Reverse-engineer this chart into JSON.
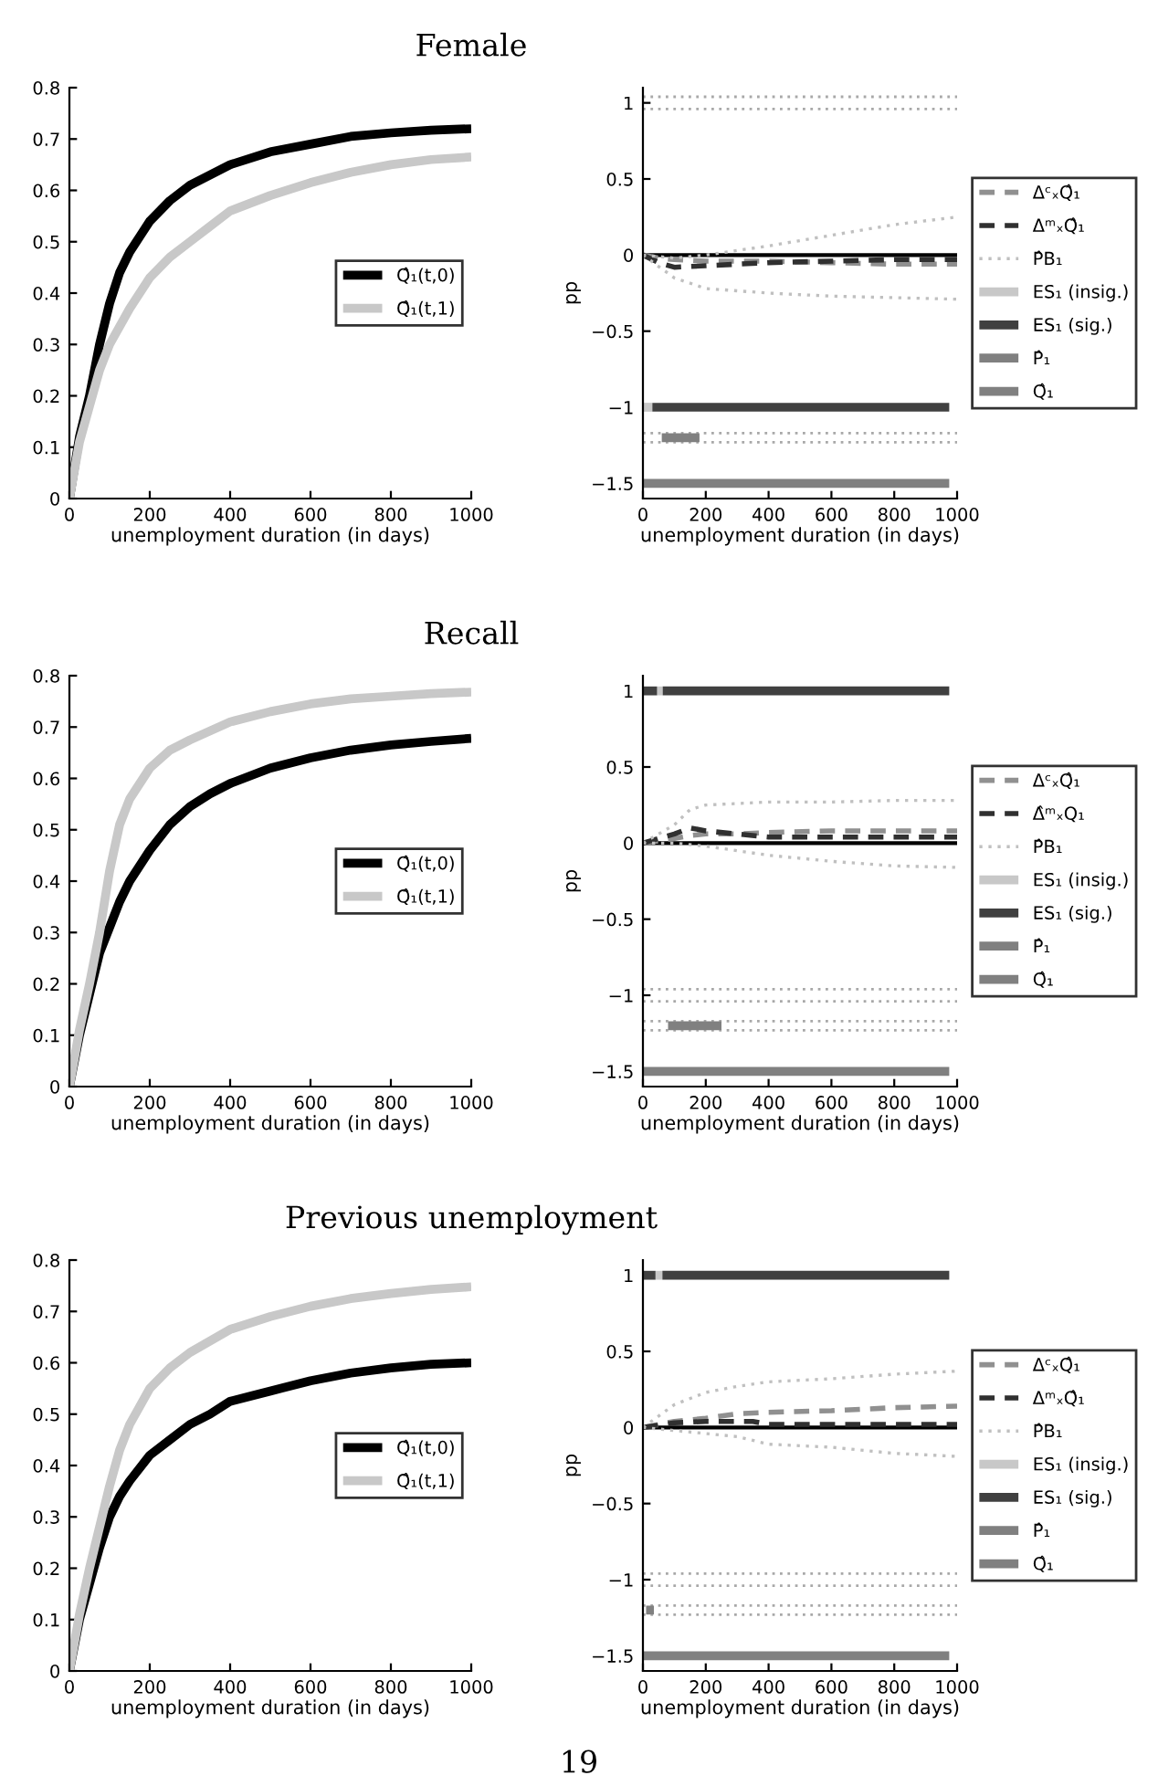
{
  "chart_data": [
    {
      "type": "line",
      "title": "Female",
      "xlabel": "unemployment duration (in days)",
      "xlim": [
        0,
        1000
      ],
      "xticks": [
        0,
        200,
        400,
        600,
        800,
        1000
      ],
      "ylim": [
        0,
        0.8
      ],
      "yticks": [
        0,
        0.1,
        0.2,
        0.3,
        0.4,
        0.5,
        0.6,
        0.7,
        0.8
      ],
      "legend": "center right",
      "series": [
        {
          "name": "Q̂₁(t,0)",
          "color": "#000000",
          "line_style": "solid",
          "x": [
            0,
            25,
            50,
            75,
            100,
            125,
            150,
            200,
            250,
            300,
            400,
            500,
            600,
            700,
            800,
            900,
            1000
          ],
          "values": [
            0,
            0.12,
            0.2,
            0.3,
            0.38,
            0.44,
            0.48,
            0.54,
            0.58,
            0.61,
            0.65,
            0.675,
            0.69,
            0.705,
            0.712,
            0.717,
            0.72
          ]
        },
        {
          "name": "Q̂₁(t,1)",
          "color": "#c8c8c8",
          "line_style": "solid",
          "x": [
            0,
            25,
            50,
            75,
            100,
            150,
            200,
            250,
            300,
            350,
            400,
            500,
            600,
            700,
            800,
            900,
            1000
          ],
          "values": [
            0,
            0.11,
            0.18,
            0.25,
            0.3,
            0.37,
            0.43,
            0.47,
            0.5,
            0.53,
            0.56,
            0.59,
            0.615,
            0.635,
            0.65,
            0.66,
            0.665
          ]
        }
      ]
    },
    {
      "type": "line",
      "xlabel": "unemployment duration (in days)",
      "ylabel": "pp",
      "xlim": [
        0,
        1000
      ],
      "xticks": [
        0,
        200,
        400,
        600,
        800,
        1000
      ],
      "ylim": [
        -1.6,
        1.1
      ],
      "yticks": [
        {
          "value": -1.5,
          "label": "−1.5"
        },
        {
          "value": -1,
          "label": "−1"
        },
        {
          "value": -0.5,
          "label": "−0.5"
        },
        0,
        0.5,
        1
      ],
      "legend": "right",
      "ref_lines": [
        {
          "axis": "y",
          "value": 0,
          "color": "#000000",
          "line_style": "solid"
        },
        {
          "axis": "y",
          "value": 1.04,
          "color": "#a8a8a8",
          "line_style": "dotted"
        },
        {
          "axis": "y",
          "value": 0.96,
          "color": "#a8a8a8",
          "line_style": "dotted"
        },
        {
          "axis": "y",
          "value": -1.17,
          "color": "#a8a8a8",
          "line_style": "dotted"
        },
        {
          "axis": "y",
          "value": -1.23,
          "color": "#a8a8a8",
          "line_style": "dotted"
        }
      ],
      "series": [
        {
          "name": "ΔᶜₓQ̂₁",
          "color": "#909090",
          "line_style": "dashed",
          "x": [
            0,
            50,
            100,
            200,
            400,
            600,
            800,
            1000
          ],
          "values": [
            0,
            -0.02,
            -0.03,
            -0.04,
            -0.04,
            -0.05,
            -0.06,
            -0.06
          ]
        },
        {
          "name": "ΔᵐₓQ̂₁",
          "color": "#303030",
          "line_style": "dashed",
          "x": [
            0,
            50,
            100,
            200,
            400,
            600,
            800,
            1000
          ],
          "values": [
            0,
            -0.05,
            -0.08,
            -0.07,
            -0.05,
            -0.04,
            -0.03,
            -0.03
          ]
        },
        {
          "name": "P̂B₁",
          "color": "#c0c0c0",
          "line_style": "dotted",
          "x": [
            0,
            100,
            200,
            300,
            400,
            600,
            800,
            1000
          ],
          "values": [
            0,
            -0.02,
            0,
            0.03,
            0.06,
            0.13,
            0.2,
            0.25
          ]
        },
        {
          "color": "#c0c0c0",
          "line_style": "dotted",
          "x": [
            0,
            100,
            200,
            400,
            600,
            800,
            1000
          ],
          "values": [
            0,
            -0.15,
            -0.22,
            -0.25,
            -0.27,
            -0.28,
            -0.29
          ]
        },
        {
          "name": "ES₁ (insig.)",
          "color": "#c8c8c8",
          "line_style": "solid",
          "x": [
            0,
            30
          ],
          "values": [
            -1,
            -1
          ]
        },
        {
          "name": "ES₁ (sig.)",
          "color": "#404040",
          "line_style": "solid",
          "x": [
            30,
            975
          ],
          "values": [
            -1,
            -1
          ]
        },
        {
          "name": "P̂₁",
          "color": "#808080",
          "line_style": "solid",
          "x": [
            60,
            180
          ],
          "values": [
            -1.2,
            -1.2
          ]
        },
        {
          "name": "Q̂₁",
          "color": "#808080",
          "line_style": "solid",
          "x": [
            0,
            975
          ],
          "values": [
            -1.5,
            -1.5
          ]
        }
      ]
    },
    {
      "type": "line",
      "title": "Recall",
      "xlabel": "unemployment duration (in days)",
      "xlim": [
        0,
        1000
      ],
      "xticks": [
        0,
        200,
        400,
        600,
        800,
        1000
      ],
      "ylim": [
        0,
        0.8
      ],
      "yticks": [
        0,
        0.1,
        0.2,
        0.3,
        0.4,
        0.5,
        0.6,
        0.7,
        0.8
      ],
      "legend": "center right",
      "series": [
        {
          "name": "Q̂₁(t,0)",
          "color": "#000000",
          "line_style": "solid",
          "x": [
            0,
            25,
            50,
            75,
            100,
            125,
            150,
            200,
            250,
            300,
            350,
            400,
            500,
            600,
            700,
            800,
            900,
            1000
          ],
          "values": [
            0,
            0.1,
            0.18,
            0.26,
            0.31,
            0.36,
            0.4,
            0.46,
            0.51,
            0.545,
            0.57,
            0.59,
            0.62,
            0.64,
            0.655,
            0.665,
            0.672,
            0.678
          ]
        },
        {
          "name": "Q̂₁(t,1)",
          "color": "#c8c8c8",
          "line_style": "solid",
          "x": [
            0,
            25,
            50,
            75,
            100,
            125,
            150,
            200,
            250,
            300,
            400,
            500,
            600,
            700,
            800,
            900,
            1000
          ],
          "values": [
            0,
            0.11,
            0.2,
            0.3,
            0.42,
            0.51,
            0.56,
            0.62,
            0.655,
            0.675,
            0.71,
            0.73,
            0.745,
            0.755,
            0.76,
            0.765,
            0.768
          ]
        }
      ]
    },
    {
      "type": "line",
      "xlabel": "unemployment duration (in days)",
      "ylabel": "pp",
      "xlim": [
        0,
        1000
      ],
      "xticks": [
        0,
        200,
        400,
        600,
        800,
        1000
      ],
      "ylim": [
        -1.6,
        1.1
      ],
      "yticks": [
        {
          "value": -1.5,
          "label": "−1.5"
        },
        {
          "value": -1,
          "label": "−1"
        },
        {
          "value": -0.5,
          "label": "−0.5"
        },
        0,
        0.5,
        1
      ],
      "legend": "right",
      "ref_lines": [
        {
          "axis": "y",
          "value": 0,
          "color": "#000000",
          "line_style": "solid"
        },
        {
          "axis": "y",
          "value": -0.96,
          "color": "#a8a8a8",
          "line_style": "dotted"
        },
        {
          "axis": "y",
          "value": -1.04,
          "color": "#a8a8a8",
          "line_style": "dotted"
        },
        {
          "axis": "y",
          "value": -1.17,
          "color": "#a8a8a8",
          "line_style": "dotted"
        },
        {
          "axis": "y",
          "value": -1.23,
          "color": "#a8a8a8",
          "line_style": "dotted"
        }
      ],
      "series": [
        {
          "name": "ΔᶜₓQ̂₁",
          "color": "#909090",
          "line_style": "dashed",
          "x": [
            0,
            100,
            150,
            200,
            300,
            400,
            600,
            800,
            1000
          ],
          "values": [
            0,
            0.03,
            0.05,
            0.06,
            0.06,
            0.07,
            0.08,
            0.08,
            0.08
          ]
        },
        {
          "name": "Δ̂ᵐₓQ₁",
          "color": "#303030",
          "line_style": "dashed",
          "x": [
            0,
            100,
            150,
            200,
            300,
            400,
            600,
            800,
            1000
          ],
          "values": [
            0,
            0.06,
            0.1,
            0.08,
            0.06,
            0.04,
            0.04,
            0.04,
            0.04
          ]
        },
        {
          "name": "P̂B₁",
          "color": "#c0c0c0",
          "line_style": "dotted",
          "x": [
            0,
            100,
            150,
            200,
            300,
            400,
            600,
            800,
            1000
          ],
          "values": [
            0,
            0.12,
            0.22,
            0.25,
            0.26,
            0.27,
            0.27,
            0.28,
            0.28
          ]
        },
        {
          "color": "#c0c0c0",
          "line_style": "dotted",
          "x": [
            0,
            100,
            200,
            300,
            400,
            600,
            800,
            1000
          ],
          "values": [
            0,
            0,
            -0.02,
            -0.05,
            -0.08,
            -0.12,
            -0.15,
            -0.16
          ]
        },
        {
          "name": "ES₁ (insig.)",
          "color": "#c8c8c8",
          "line_style": "solid",
          "x": [
            45,
            63
          ],
          "values": [
            1,
            1
          ]
        },
        {
          "name": "ES₁ (sig.)",
          "color": "#404040",
          "line_style": "solid",
          "x": [
            63,
            975
          ],
          "values": [
            1,
            1
          ]
        },
        {
          "color": "#404040",
          "line_style": "solid",
          "x": [
            0,
            45
          ],
          "values": [
            1,
            1
          ]
        },
        {
          "name": "P̂₁",
          "color": "#808080",
          "line_style": "solid",
          "x": [
            80,
            250
          ],
          "values": [
            -1.2,
            -1.2
          ]
        },
        {
          "name": "Q̂₁",
          "color": "#808080",
          "line_style": "solid",
          "x": [
            0,
            975
          ],
          "values": [
            -1.5,
            -1.5
          ]
        }
      ]
    },
    {
      "type": "line",
      "title": "Previous unemployment",
      "xlabel": "unemployment duration (in days)",
      "xlim": [
        0,
        1000
      ],
      "xticks": [
        0,
        200,
        400,
        600,
        800,
        1000
      ],
      "ylim": [
        0,
        0.8
      ],
      "yticks": [
        0,
        0.1,
        0.2,
        0.3,
        0.4,
        0.5,
        0.6,
        0.7,
        0.8
      ],
      "legend": "center right",
      "series": [
        {
          "name": "Q̂₁(t,0)",
          "color": "#000000",
          "line_style": "solid",
          "x": [
            0,
            25,
            50,
            75,
            100,
            125,
            150,
            200,
            250,
            300,
            350,
            400,
            500,
            600,
            700,
            800,
            900,
            1000
          ],
          "values": [
            0,
            0.1,
            0.17,
            0.24,
            0.3,
            0.34,
            0.37,
            0.42,
            0.45,
            0.48,
            0.5,
            0.525,
            0.545,
            0.565,
            0.58,
            0.59,
            0.597,
            0.6
          ]
        },
        {
          "name": "Q̂₁(t,1)",
          "color": "#c8c8c8",
          "line_style": "solid",
          "x": [
            0,
            25,
            50,
            75,
            100,
            125,
            150,
            200,
            250,
            300,
            400,
            500,
            600,
            700,
            800,
            900,
            1000
          ],
          "values": [
            0,
            0.11,
            0.2,
            0.28,
            0.36,
            0.43,
            0.48,
            0.55,
            0.59,
            0.62,
            0.665,
            0.69,
            0.71,
            0.725,
            0.735,
            0.743,
            0.748
          ]
        }
      ]
    },
    {
      "type": "line",
      "xlabel": "unemployment duration (in days)",
      "ylabel": "pp",
      "xlim": [
        0,
        1000
      ],
      "xticks": [
        0,
        200,
        400,
        600,
        800,
        1000
      ],
      "ylim": [
        -1.6,
        1.1
      ],
      "yticks": [
        {
          "value": -1.5,
          "label": "−1.5"
        },
        {
          "value": -1,
          "label": "−1"
        },
        {
          "value": -0.5,
          "label": "−0.5"
        },
        0,
        0.5,
        1
      ],
      "legend": "right",
      "annotations": [
        "19"
      ],
      "ref_lines": [
        {
          "axis": "y",
          "value": 0,
          "color": "#000000",
          "line_style": "solid"
        },
        {
          "axis": "y",
          "value": -0.96,
          "color": "#a8a8a8",
          "line_style": "dotted"
        },
        {
          "axis": "y",
          "value": -1.04,
          "color": "#a8a8a8",
          "line_style": "dotted"
        },
        {
          "axis": "y",
          "value": -1.17,
          "color": "#a8a8a8",
          "line_style": "dotted"
        },
        {
          "axis": "y",
          "value": -1.23,
          "color": "#a8a8a8",
          "line_style": "dotted"
        }
      ],
      "series": [
        {
          "name": "ΔᶜₓQ̂₁",
          "color": "#909090",
          "line_style": "dashed",
          "x": [
            0,
            100,
            200,
            300,
            400,
            600,
            800,
            1000
          ],
          "values": [
            0,
            0.04,
            0.06,
            0.09,
            0.1,
            0.11,
            0.13,
            0.14
          ]
        },
        {
          "name": "ΔᵐₓQ̂₁",
          "color": "#303030",
          "line_style": "dashed",
          "x": [
            0,
            100,
            200,
            350,
            400,
            600,
            800,
            1000
          ],
          "values": [
            0,
            0.03,
            0.04,
            0.04,
            0.02,
            0.02,
            0.02,
            0.02
          ]
        },
        {
          "name": "P̂B₁",
          "color": "#c0c0c0",
          "line_style": "dotted",
          "x": [
            0,
            100,
            200,
            300,
            400,
            600,
            800,
            1000
          ],
          "values": [
            0,
            0.15,
            0.23,
            0.27,
            0.3,
            0.32,
            0.35,
            0.37
          ]
        },
        {
          "color": "#c0c0c0",
          "line_style": "dotted",
          "x": [
            0,
            100,
            200,
            300,
            400,
            600,
            800,
            1000
          ],
          "values": [
            0,
            -0.02,
            -0.04,
            -0.06,
            -0.11,
            -0.13,
            -0.17,
            -0.19
          ]
        },
        {
          "name": "ES₁ (insig.)",
          "color": "#c8c8c8",
          "line_style": "solid",
          "x": [
            40,
            62
          ],
          "values": [
            1,
            1
          ]
        },
        {
          "name": "ES₁ (sig.)",
          "color": "#404040",
          "line_style": "solid",
          "x": [
            62,
            975
          ],
          "values": [
            1,
            1
          ]
        },
        {
          "color": "#404040",
          "line_style": "solid",
          "x": [
            0,
            40
          ],
          "values": [
            1,
            1
          ]
        },
        {
          "name": "P̂₁",
          "color": "#808080",
          "line_style": "solid",
          "x": [
            10,
            35
          ],
          "values": [
            -1.2,
            -1.2
          ]
        },
        {
          "name": "Q̂₁",
          "color": "#808080",
          "line_style": "solid",
          "x": [
            0,
            975
          ],
          "values": [
            -1.5,
            -1.5
          ]
        }
      ]
    }
  ]
}
